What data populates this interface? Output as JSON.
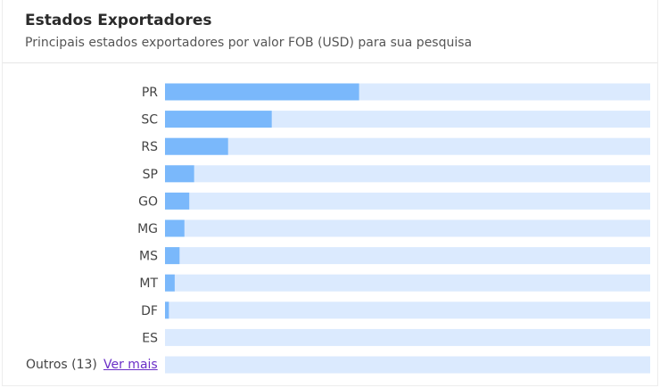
{
  "header": {
    "title": "Estados Exportadores",
    "subtitle": "Principais estados exportadores por valor FOB (USD) para sua pesquisa"
  },
  "others": {
    "label": "Outros (13)",
    "link_label": "Ver mais",
    "value": 0
  },
  "colors": {
    "fill": "#7ab8fb",
    "track": "#dbeafe",
    "link": "#6b2fc7"
  },
  "chart_data": {
    "type": "bar",
    "orientation": "horizontal",
    "categories": [
      "PR",
      "SC",
      "RS",
      "SP",
      "GO",
      "MG",
      "MS",
      "MT",
      "DF",
      "ES"
    ],
    "values": [
      40,
      22,
      13,
      6,
      5,
      4,
      3,
      2,
      0.8,
      0
    ],
    "xlim": [
      0,
      100
    ],
    "grid": false,
    "legend": "none"
  }
}
